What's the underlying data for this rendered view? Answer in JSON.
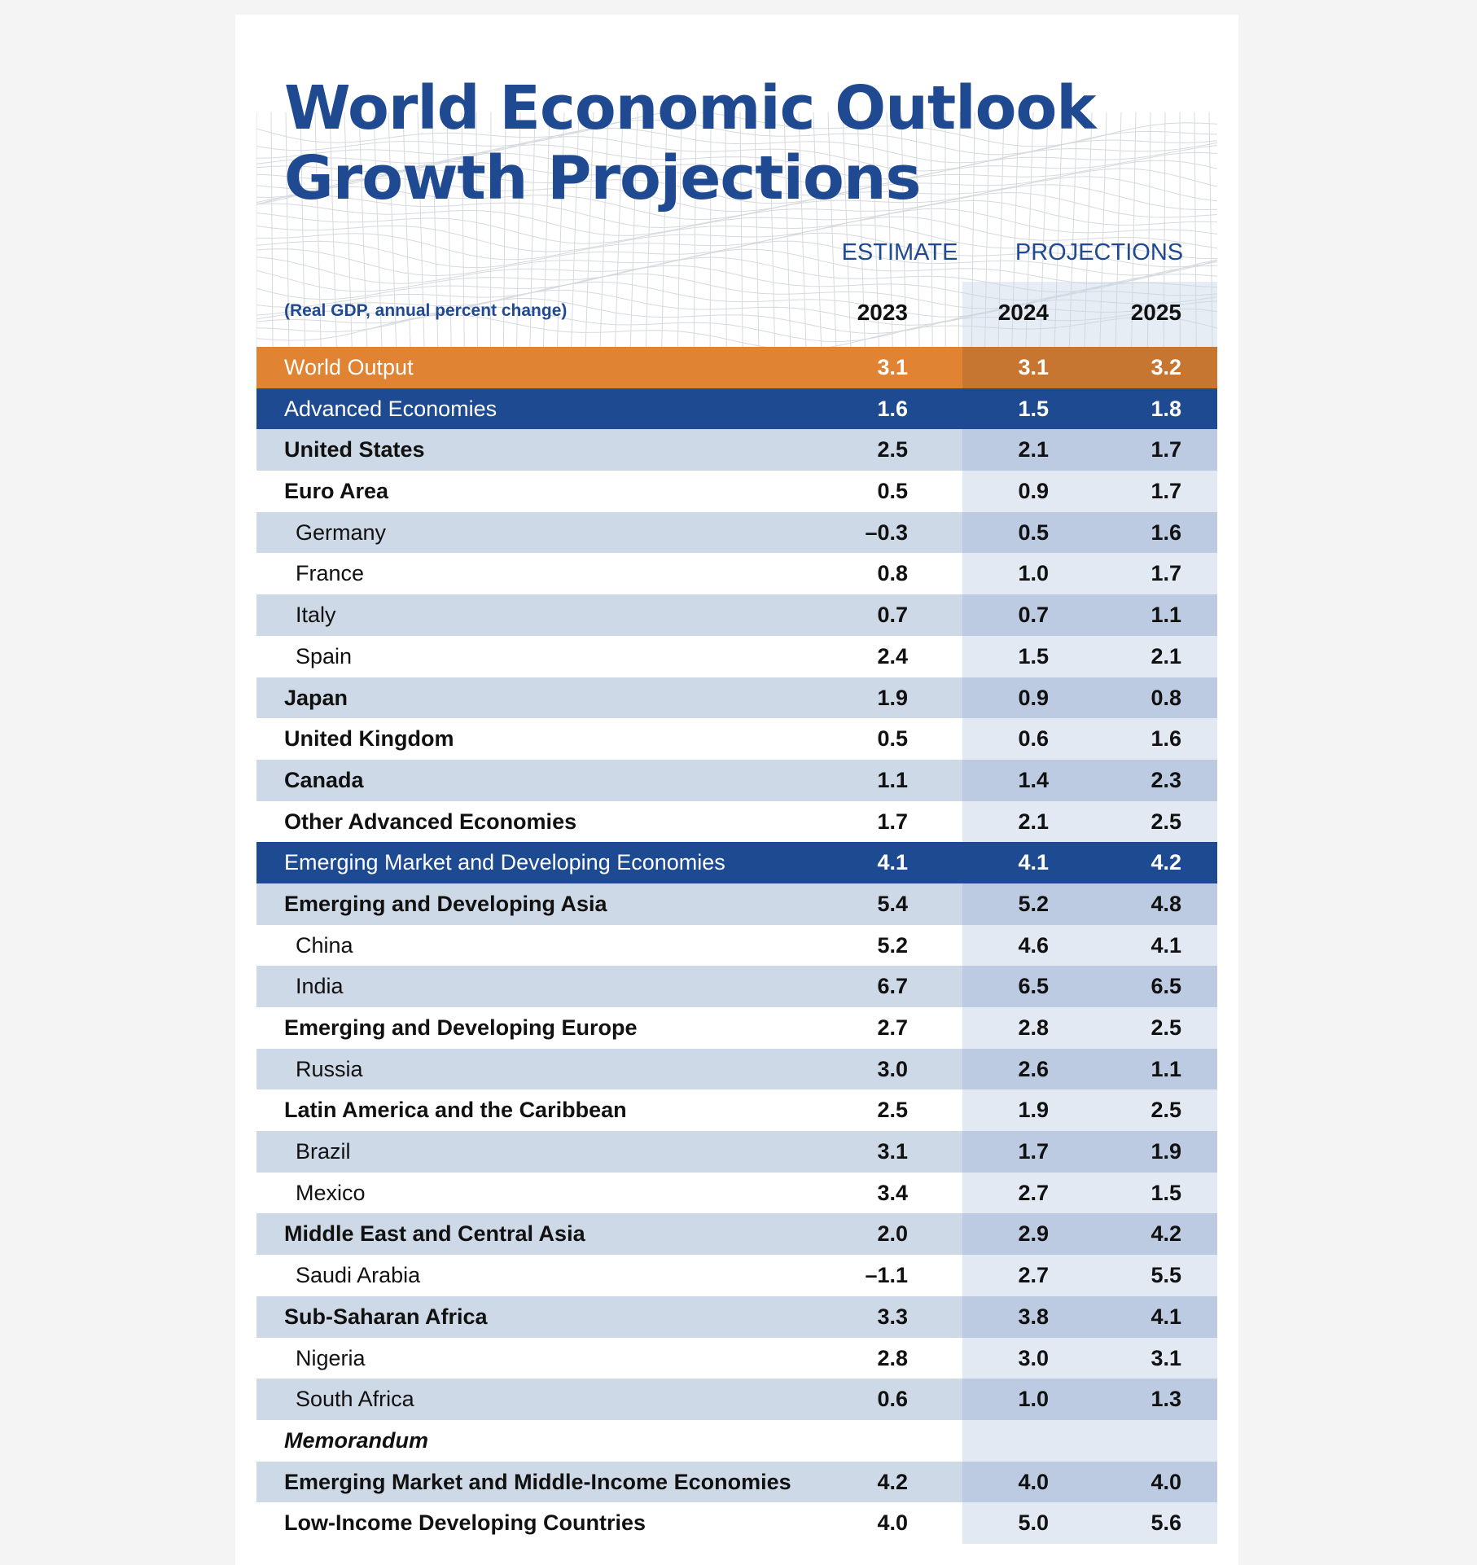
{
  "title_line1": "World Economic Outlook",
  "title_line2": "Growth Projections",
  "header": {
    "estimate": "ESTIMATE",
    "projections": "PROJECTIONS",
    "subtitle": "(Real GDP, annual percent change)",
    "years": [
      "2023",
      "2024",
      "2025"
    ]
  },
  "colors": {
    "brand_blue": "#1f4a92",
    "orange": "#e08333",
    "row_shade": "#ced9e7"
  },
  "rows": [
    {
      "label": "World Output",
      "style": "orange",
      "v": [
        "3.1",
        "3.1",
        "3.2"
      ]
    },
    {
      "label": "Advanced Economies",
      "style": "blue",
      "v": [
        "1.6",
        "1.5",
        "1.8"
      ]
    },
    {
      "label": "United States",
      "style": "shade bold",
      "v": [
        "2.5",
        "2.1",
        "1.7"
      ]
    },
    {
      "label": "Euro Area",
      "style": "plain bold",
      "v": [
        "0.5",
        "0.9",
        "1.7"
      ]
    },
    {
      "label": "Germany",
      "style": "shade indent",
      "v": [
        "–0.3",
        "0.5",
        "1.6"
      ]
    },
    {
      "label": "France",
      "style": "plain indent",
      "v": [
        "0.8",
        "1.0",
        "1.7"
      ]
    },
    {
      "label": "Italy",
      "style": "shade indent",
      "v": [
        "0.7",
        "0.7",
        "1.1"
      ]
    },
    {
      "label": "Spain",
      "style": "plain indent",
      "v": [
        "2.4",
        "1.5",
        "2.1"
      ]
    },
    {
      "label": "Japan",
      "style": "shade bold",
      "v": [
        "1.9",
        "0.9",
        "0.8"
      ]
    },
    {
      "label": "United Kingdom",
      "style": "plain bold",
      "v": [
        "0.5",
        "0.6",
        "1.6"
      ]
    },
    {
      "label": "Canada",
      "style": "shade bold",
      "v": [
        "1.1",
        "1.4",
        "2.3"
      ]
    },
    {
      "label": "Other Advanced Economies",
      "style": "plain bold",
      "v": [
        "1.7",
        "2.1",
        "2.5"
      ]
    },
    {
      "label": "Emerging Market and Developing Economies",
      "style": "blue",
      "v": [
        "4.1",
        "4.1",
        "4.2"
      ]
    },
    {
      "label": "Emerging and Developing Asia",
      "style": "shade bold",
      "v": [
        "5.4",
        "5.2",
        "4.8"
      ]
    },
    {
      "label": "China",
      "style": "plain indent",
      "v": [
        "5.2",
        "4.6",
        "4.1"
      ]
    },
    {
      "label": "India",
      "style": "shade indent",
      "v": [
        "6.7",
        "6.5",
        "6.5"
      ]
    },
    {
      "label": "Emerging and Developing Europe",
      "style": "plain bold",
      "v": [
        "2.7",
        "2.8",
        "2.5"
      ]
    },
    {
      "label": "Russia",
      "style": "shade indent",
      "v": [
        "3.0",
        "2.6",
        "1.1"
      ]
    },
    {
      "label": "Latin America and the Caribbean",
      "style": "plain bold",
      "v": [
        "2.5",
        "1.9",
        "2.5"
      ]
    },
    {
      "label": "Brazil",
      "style": "shade indent",
      "v": [
        "3.1",
        "1.7",
        "1.9"
      ]
    },
    {
      "label": "Mexico",
      "style": "plain indent",
      "v": [
        "3.4",
        "2.7",
        "1.5"
      ]
    },
    {
      "label": "Middle East and Central Asia",
      "style": "shade bold",
      "v": [
        "2.0",
        "2.9",
        "4.2"
      ]
    },
    {
      "label": "Saudi Arabia",
      "style": "plain indent",
      "v": [
        "–1.1",
        "2.7",
        "5.5"
      ]
    },
    {
      "label": "Sub-Saharan Africa",
      "style": "shade bold",
      "v": [
        "3.3",
        "3.8",
        "4.1"
      ]
    },
    {
      "label": "Nigeria",
      "style": "plain indent",
      "v": [
        "2.8",
        "3.0",
        "3.1"
      ]
    },
    {
      "label": "South Africa",
      "style": "shade indent",
      "v": [
        "0.6",
        "1.0",
        "1.3"
      ]
    },
    {
      "label": "Memorandum",
      "style": "plain-empty italic",
      "v": [
        "",
        "",
        ""
      ]
    },
    {
      "label": "Emerging Market and Middle-Income Economies",
      "style": "shade bold",
      "v": [
        "4.2",
        "4.0",
        "4.0"
      ]
    },
    {
      "label": "Low-Income Developing Countries",
      "style": "plain bold",
      "v": [
        "4.0",
        "5.0",
        "5.6"
      ]
    }
  ]
}
